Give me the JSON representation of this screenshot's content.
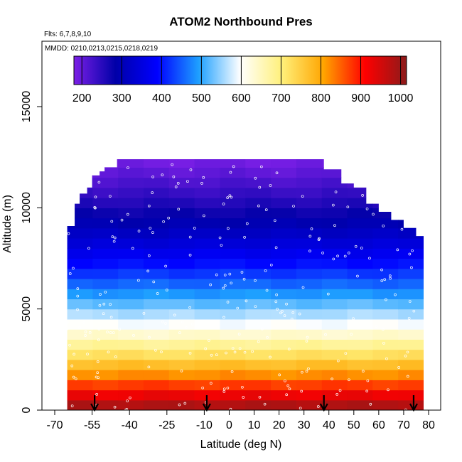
{
  "chart_data": {
    "type": "heatmap",
    "title": "ATOM2 Northbound Pres",
    "subtitle_flights": "Flts: 6,7,8,9,10",
    "subtitle_dates": "MMDD: 0210,0213,0215,0218,0219",
    "xlabel": "Latitude (deg N)",
    "ylabel": "Altitude (m)",
    "xlim": [
      -70,
      80
    ],
    "ylim": [
      0,
      17500
    ],
    "x_ticks": [
      "-70",
      "-55",
      "-40",
      "-25",
      "-10",
      "0",
      "10",
      "20",
      "30",
      "40",
      "50",
      "60",
      "70",
      "80"
    ],
    "y_ticks": [
      "0",
      "5000",
      "10000",
      "15000"
    ],
    "colorbar": {
      "min": 180,
      "max": 1015,
      "ticks": [
        "200",
        "300",
        "400",
        "500",
        "600",
        "700",
        "800",
        "900",
        "1000"
      ],
      "colors": [
        "#7b1fe6",
        "#0000a8",
        "#0000ff",
        "#1ea0ff",
        "#ffffff",
        "#fff07a",
        "#ffa500",
        "#ff0000",
        "#8b1a1a"
      ]
    },
    "pressure_profile": {
      "altitude": [
        0,
        1000,
        2000,
        3000,
        4000,
        5000,
        6000,
        7000,
        8000,
        9000,
        10000,
        11000,
        12000,
        13000
      ],
      "pressure": [
        1010,
        900,
        795,
        700,
        615,
        540,
        470,
        410,
        355,
        305,
        265,
        230,
        195,
        170
      ]
    },
    "coverage_ceiling": {
      "latitude": [
        -65,
        -62,
        -60,
        -57,
        -55,
        -52,
        -50,
        -45,
        -42,
        -40,
        -35,
        -30,
        -20,
        -10,
        -5,
        0,
        10,
        20,
        30,
        35,
        38,
        40,
        45,
        50,
        55,
        60,
        65,
        70,
        75,
        78
      ],
      "altitude": [
        9100,
        10200,
        10700,
        11000,
        11600,
        11800,
        12000,
        12400,
        12400,
        12400,
        12400,
        12400,
        12400,
        12400,
        12400,
        12400,
        12400,
        12400,
        12400,
        12400,
        11900,
        11900,
        11200,
        11000,
        10200,
        9800,
        9400,
        9000,
        8600,
        8400
      ]
    },
    "annotations": {
      "arrow_latitudes": [
        -54,
        -9,
        38,
        74
      ]
    }
  }
}
